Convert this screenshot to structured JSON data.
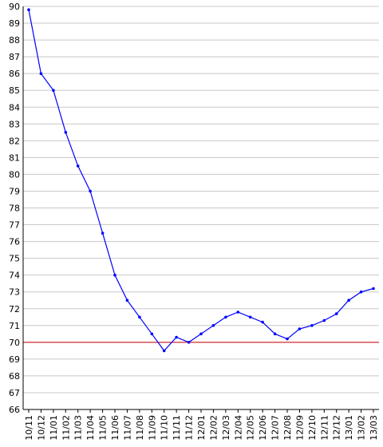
{
  "chart_data": {
    "type": "line",
    "title": "",
    "xlabel": "",
    "ylabel": "",
    "ylim": [
      66,
      90
    ],
    "y_ticks": [
      66,
      67,
      68,
      69,
      70,
      71,
      72,
      73,
      74,
      75,
      76,
      77,
      78,
      79,
      80,
      81,
      82,
      83,
      84,
      85,
      86,
      87,
      88,
      89,
      90
    ],
    "x_tick_labels": [
      "10/11",
      "10/12",
      "11/01",
      "11/02",
      "11/03",
      "11/04",
      "11/05",
      "11/06",
      "11/07",
      "11/08",
      "11/09",
      "11/10",
      "11/11",
      "11/12",
      "12/01",
      "12/02",
      "12/03",
      "12/04",
      "12/05",
      "12/06",
      "12/07",
      "12/08",
      "12/09",
      "12/10",
      "12/11",
      "12/12",
      "13/01",
      "13/02",
      "13/03"
    ],
    "grid": "horizontal",
    "reference_line": {
      "y": 70,
      "color": "#cc0000"
    },
    "series": [
      {
        "color": "#0000ff",
        "x": [
          "10/11",
          "10/12",
          "11/01",
          "11/02",
          "11/03",
          "11/04",
          "11/05",
          "11/06",
          "11/07",
          "11/08",
          "11/09",
          "11/10",
          "11/11",
          "11/12",
          "12/01",
          "12/02",
          "12/03",
          "12/04",
          "12/05",
          "12/06",
          "12/07",
          "12/08",
          "12/09",
          "12/10",
          "12/11",
          "12/12",
          "13/01",
          "13/02",
          "13/03"
        ],
        "values": [
          89.8,
          86.0,
          85.0,
          82.5,
          80.5,
          79.0,
          76.5,
          74.0,
          72.5,
          71.5,
          70.5,
          69.5,
          70.3,
          70.0,
          70.5,
          71.0,
          71.5,
          71.8,
          71.5,
          71.2,
          70.5,
          70.2,
          70.8,
          71.0,
          71.3,
          71.7,
          72.5,
          73.0,
          73.2
        ]
      }
    ]
  }
}
